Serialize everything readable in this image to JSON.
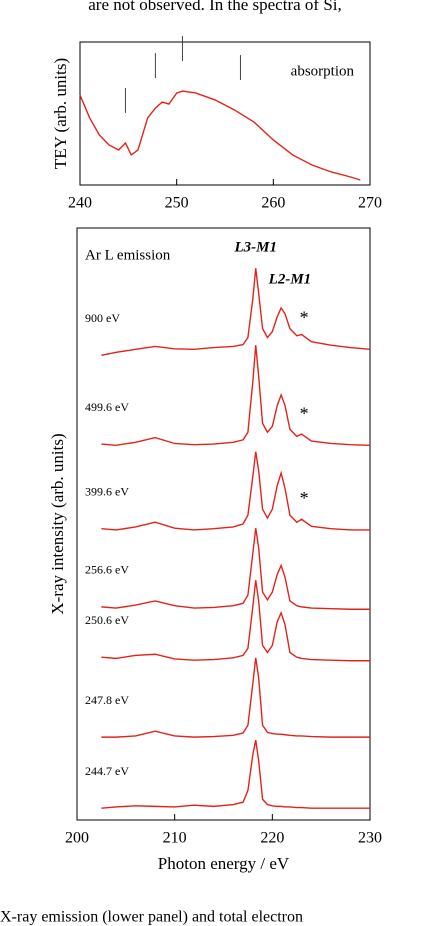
{
  "page": {
    "text_top": "are not observed. In the spectra of Si,",
    "caption": "X-ray emission (lower panel) and total electron"
  },
  "chart_data": [
    {
      "type": "line",
      "ylabel": "TEY (arb. units)",
      "annotation": "absorption",
      "color": "#e3231b",
      "x": [
        240,
        241,
        242,
        243,
        244,
        244.7,
        245.3,
        246,
        247,
        247.8,
        248.5,
        249.2,
        250,
        250.6,
        252,
        254,
        256,
        258,
        260,
        262,
        264,
        266,
        268,
        269
      ],
      "values": [
        62.9,
        46.9,
        35,
        28,
        24.5,
        29.4,
        21,
        24.5,
        46.9,
        53.8,
        58,
        56.6,
        64.3,
        65.7,
        64.3,
        59.4,
        52.4,
        44,
        31.5,
        21,
        14,
        9.1,
        5.6,
        3.5
      ],
      "markers": [
        244.7,
        247.8,
        250.6,
        256.6
      ],
      "xlim": [
        240,
        270
      ],
      "xticks": [
        240,
        250,
        260,
        270
      ],
      "ylim": [
        0,
        100
      ]
    },
    {
      "type": "line",
      "xlabel": "Photon energy / eV",
      "ylabel": "X-ray intensity (arb. units)",
      "annotations": [
        "Ar L emission",
        "L3-M1",
        "L2-M1"
      ],
      "stars": [
        "*",
        "*",
        "*"
      ],
      "x": [
        202.5,
        204,
        206,
        208,
        210,
        212,
        214,
        216,
        217,
        217.5,
        218,
        218.3,
        218.6,
        219,
        219.5,
        220,
        220.5,
        220.9,
        221.3,
        221.8,
        222.5,
        223,
        224,
        226,
        228,
        230
      ],
      "series": [
        {
          "name": "900 eV",
          "color": "#e3231b",
          "values": [
            78.5,
            79,
            79.5,
            80,
            79.6,
            79.5,
            79.8,
            80,
            80.3,
            81.5,
            88,
            93.2,
            89,
            83,
            81.5,
            82.5,
            85,
            86.5,
            85.5,
            83,
            81.8,
            82,
            80.8,
            80.2,
            79.8,
            79.5
          ]
        },
        {
          "name": "499.6 eV",
          "color": "#e3231b",
          "values": [
            63.5,
            63.3,
            63.8,
            64.6,
            63.6,
            63.4,
            63.5,
            63.8,
            64.2,
            65.5,
            74,
            80.2,
            75,
            67,
            65.5,
            66.5,
            70,
            71.8,
            70,
            66,
            64.8,
            65.2,
            64,
            63.6,
            63.4,
            63.3
          ]
        },
        {
          "name": "399.6 eV",
          "color": "#e3231b",
          "values": [
            49.2,
            49,
            49.5,
            50.3,
            49.3,
            49,
            49.2,
            49.5,
            50,
            51.5,
            58,
            62.2,
            59,
            52.5,
            51,
            52.5,
            56.5,
            58.6,
            56,
            51.5,
            50.3,
            50.8,
            49.6,
            49.2,
            49,
            49
          ]
        },
        {
          "name": "256.6 eV",
          "color": "#e3231b",
          "values": [
            36,
            35.8,
            36.3,
            37,
            36.2,
            35.8,
            35.9,
            36.2,
            36.6,
            38,
            45,
            49.3,
            46,
            38.5,
            37.2,
            38.5,
            41.5,
            43,
            41,
            37,
            36.2,
            36,
            35.8,
            35.7,
            35.6,
            35.6
          ]
        },
        {
          "name": "250.6 eV",
          "color": "#e3231b",
          "values": [
            27.5,
            27.3,
            27.8,
            28,
            27.2,
            27,
            27.1,
            27.4,
            27.8,
            29,
            36,
            40.5,
            37,
            29.5,
            28.3,
            29.5,
            33.5,
            35,
            33,
            28.3,
            27.5,
            27.3,
            27.1,
            27,
            26.9,
            26.9
          ]
        },
        {
          "name": "247.8 eV",
          "color": "#e3231b",
          "values": [
            14,
            14,
            14.2,
            15,
            14.2,
            14,
            14.1,
            14.3,
            14.7,
            16,
            23,
            27.4,
            24,
            16,
            14.8,
            14.6,
            14.5,
            14.5,
            14.4,
            14.3,
            14.2,
            14.2,
            14.1,
            14,
            14,
            14
          ]
        },
        {
          "name": "244.7 eV",
          "color": "#e3231b",
          "values": [
            2,
            2.2,
            2.4,
            2.3,
            2.2,
            2.5,
            2.3,
            2.6,
            3,
            5,
            11,
            13.5,
            10,
            3.5,
            2.6,
            2.4,
            2.3,
            2.3,
            2.2,
            2.2,
            2.1,
            2.1,
            2,
            2,
            2,
            2
          ]
        }
      ],
      "xlim": [
        200,
        230
      ],
      "xticks": [
        200,
        210,
        220,
        230
      ],
      "ylim": [
        0,
        100
      ]
    }
  ]
}
